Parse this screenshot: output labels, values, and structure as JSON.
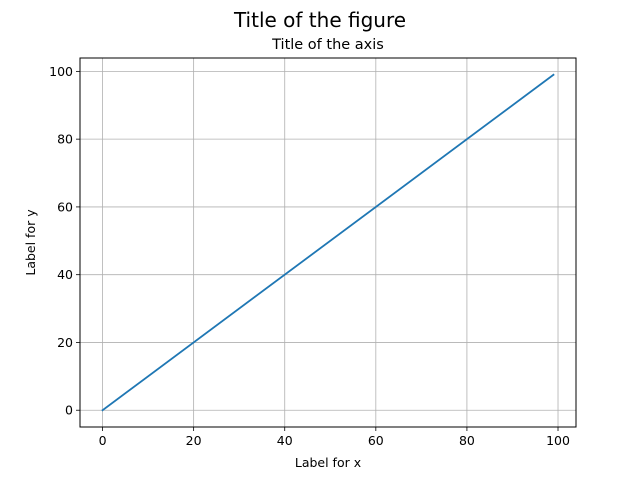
{
  "figure": {
    "suptitle": "Title of the figure"
  },
  "chart_data": {
    "type": "line",
    "title": "Title of the axis",
    "xlabel": "Label for x",
    "ylabel": "Label for y",
    "xlim": [
      -4.95,
      103.95
    ],
    "ylim": [
      -4.95,
      103.95
    ],
    "xticks": [
      0,
      20,
      40,
      60,
      80,
      100
    ],
    "yticks": [
      0,
      20,
      40,
      60,
      80,
      100
    ],
    "grid": true,
    "series": [
      {
        "color": "#1f77b4",
        "x": [
          0,
          99
        ],
        "y": [
          0,
          99
        ]
      }
    ]
  }
}
